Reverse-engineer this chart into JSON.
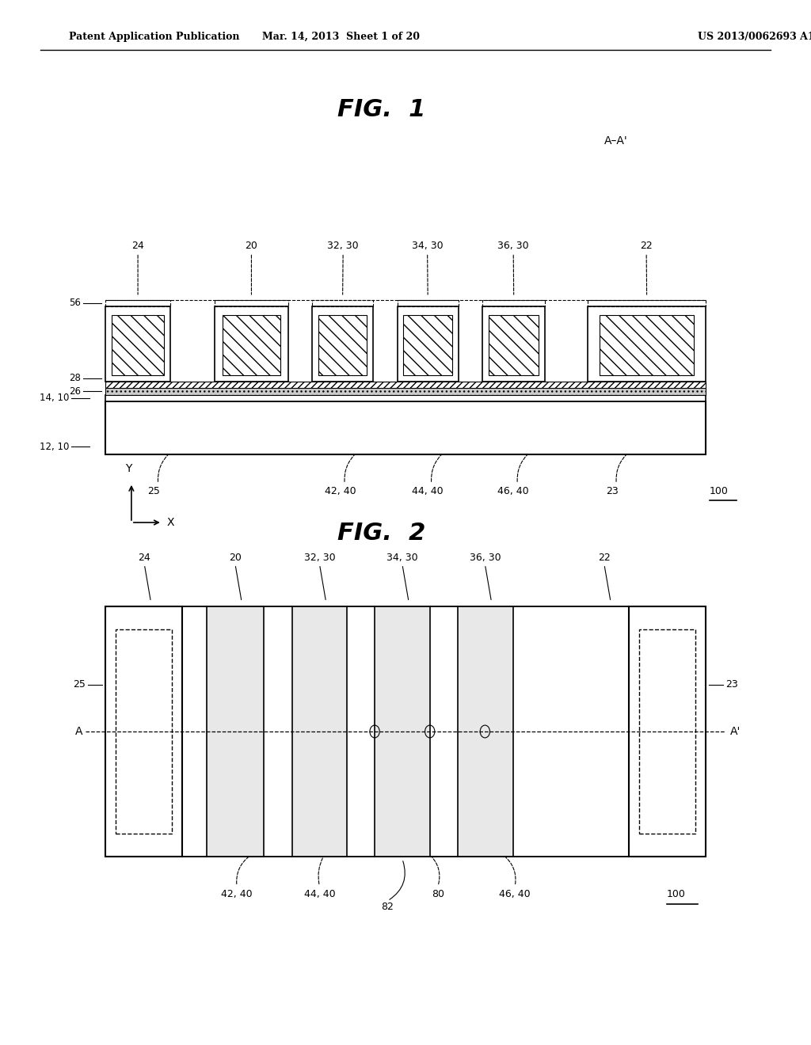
{
  "bg_color": "#ffffff",
  "header_left": "Patent Application Publication",
  "header_mid": "Mar. 14, 2013  Sheet 1 of 20",
  "header_right": "US 2013/0062693 A1",
  "fig1_title": "FIG.  1",
  "fig2_title": "FIG.  2",
  "fig1_aa_label": "A–A'"
}
